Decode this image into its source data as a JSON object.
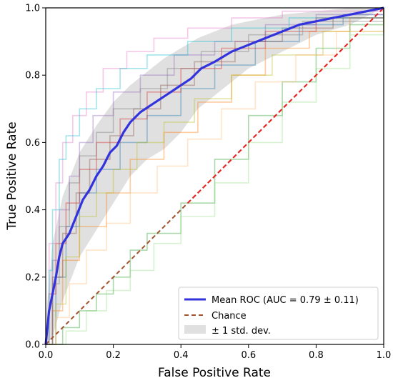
{
  "chart_data": {
    "type": "line",
    "xlabel": "False Positive Rate",
    "ylabel": "True Positive Rate",
    "xlim": [
      0.0,
      1.0
    ],
    "ylim": [
      0.0,
      1.0
    ],
    "grid": false,
    "legend_position": "bottom-right",
    "x_ticks": [
      "0.0",
      "0.2",
      "0.4",
      "0.6",
      "0.8",
      "1.0"
    ],
    "y_ticks": [
      "0.0",
      "0.2",
      "0.4",
      "0.6",
      "0.8",
      "1.0"
    ],
    "mean_roc": {
      "name": "Mean ROC (AUC = 0.79 ± 0.11)",
      "color": "#3333dd",
      "points": [
        [
          0.0,
          0.0
        ],
        [
          0.01,
          0.1
        ],
        [
          0.02,
          0.15
        ],
        [
          0.03,
          0.2
        ],
        [
          0.04,
          0.26
        ],
        [
          0.05,
          0.3
        ],
        [
          0.07,
          0.33
        ],
        [
          0.09,
          0.38
        ],
        [
          0.11,
          0.43
        ],
        [
          0.13,
          0.46
        ],
        [
          0.15,
          0.5
        ],
        [
          0.17,
          0.53
        ],
        [
          0.19,
          0.57
        ],
        [
          0.21,
          0.59
        ],
        [
          0.23,
          0.63
        ],
        [
          0.25,
          0.66
        ],
        [
          0.28,
          0.69
        ],
        [
          0.31,
          0.71
        ],
        [
          0.34,
          0.73
        ],
        [
          0.37,
          0.75
        ],
        [
          0.4,
          0.77
        ],
        [
          0.43,
          0.79
        ],
        [
          0.46,
          0.82
        ],
        [
          0.5,
          0.84
        ],
        [
          0.55,
          0.87
        ],
        [
          0.6,
          0.89
        ],
        [
          0.65,
          0.91
        ],
        [
          0.7,
          0.93
        ],
        [
          0.75,
          0.95
        ],
        [
          0.8,
          0.96
        ],
        [
          0.85,
          0.97
        ],
        [
          0.9,
          0.98
        ],
        [
          0.95,
          0.99
        ],
        [
          1.0,
          1.0
        ]
      ]
    },
    "std_band": {
      "name": "± 1 std. dev.",
      "color": "#cccccc",
      "upper": [
        [
          0.0,
          0.07
        ],
        [
          0.02,
          0.3
        ],
        [
          0.05,
          0.44
        ],
        [
          0.1,
          0.57
        ],
        [
          0.15,
          0.65
        ],
        [
          0.2,
          0.72
        ],
        [
          0.25,
          0.77
        ],
        [
          0.3,
          0.81
        ],
        [
          0.35,
          0.85
        ],
        [
          0.4,
          0.88
        ],
        [
          0.45,
          0.91
        ],
        [
          0.5,
          0.93
        ],
        [
          0.55,
          0.95
        ],
        [
          0.6,
          0.96
        ],
        [
          0.7,
          0.98
        ],
        [
          0.8,
          0.99
        ],
        [
          0.9,
          1.0
        ],
        [
          1.0,
          1.0
        ]
      ],
      "lower": [
        [
          0.0,
          0.0
        ],
        [
          0.02,
          0.02
        ],
        [
          0.05,
          0.13
        ],
        [
          0.1,
          0.26
        ],
        [
          0.15,
          0.34
        ],
        [
          0.2,
          0.42
        ],
        [
          0.25,
          0.5
        ],
        [
          0.3,
          0.55
        ],
        [
          0.35,
          0.58
        ],
        [
          0.4,
          0.63
        ],
        [
          0.45,
          0.7
        ],
        [
          0.5,
          0.74
        ],
        [
          0.55,
          0.78
        ],
        [
          0.6,
          0.82
        ],
        [
          0.7,
          0.87
        ],
        [
          0.8,
          0.92
        ],
        [
          0.9,
          0.95
        ],
        [
          1.0,
          1.0
        ]
      ]
    },
    "chance": {
      "name": "Chance",
      "color": "#a0522d",
      "overlay_color": "#ee2222",
      "points": [
        [
          0.0,
          0.0
        ],
        [
          1.0,
          1.0
        ]
      ]
    },
    "folds": [
      {
        "color": "#1f77b4",
        "points": [
          [
            0.0,
            0.0
          ],
          [
            0.03,
            0.2
          ],
          [
            0.06,
            0.35
          ],
          [
            0.1,
            0.45
          ],
          [
            0.15,
            0.52
          ],
          [
            0.22,
            0.6
          ],
          [
            0.3,
            0.68
          ],
          [
            0.4,
            0.76
          ],
          [
            0.5,
            0.83
          ],
          [
            0.62,
            0.9
          ],
          [
            0.75,
            0.95
          ],
          [
            0.88,
            0.98
          ],
          [
            1.0,
            1.0
          ]
        ]
      },
      {
        "color": "#ff7f0e",
        "points": [
          [
            0.0,
            0.0
          ],
          [
            0.02,
            0.1
          ],
          [
            0.05,
            0.25
          ],
          [
            0.1,
            0.35
          ],
          [
            0.18,
            0.45
          ],
          [
            0.25,
            0.55
          ],
          [
            0.35,
            0.63
          ],
          [
            0.45,
            0.72
          ],
          [
            0.55,
            0.8
          ],
          [
            0.65,
            0.88
          ],
          [
            0.78,
            0.93
          ],
          [
            0.9,
            0.97
          ],
          [
            1.0,
            1.0
          ]
        ]
      },
      {
        "color": "#2ca02c",
        "points": [
          [
            0.0,
            0.0
          ],
          [
            0.05,
            0.05
          ],
          [
            0.1,
            0.1
          ],
          [
            0.15,
            0.15
          ],
          [
            0.2,
            0.2
          ],
          [
            0.25,
            0.28
          ],
          [
            0.3,
            0.33
          ],
          [
            0.4,
            0.42
          ],
          [
            0.5,
            0.55
          ],
          [
            0.6,
            0.68
          ],
          [
            0.7,
            0.78
          ],
          [
            0.8,
            0.88
          ],
          [
            0.9,
            0.95
          ],
          [
            1.0,
            1.0
          ]
        ]
      },
      {
        "color": "#d62728",
        "points": [
          [
            0.0,
            0.0
          ],
          [
            0.01,
            0.15
          ],
          [
            0.03,
            0.3
          ],
          [
            0.06,
            0.42
          ],
          [
            0.1,
            0.52
          ],
          [
            0.15,
            0.6
          ],
          [
            0.22,
            0.67
          ],
          [
            0.3,
            0.75
          ],
          [
            0.4,
            0.82
          ],
          [
            0.52,
            0.88
          ],
          [
            0.65,
            0.93
          ],
          [
            0.8,
            0.97
          ],
          [
            1.0,
            1.0
          ]
        ]
      },
      {
        "color": "#9467bd",
        "points": [
          [
            0.0,
            0.0
          ],
          [
            0.02,
            0.25
          ],
          [
            0.04,
            0.4
          ],
          [
            0.07,
            0.5
          ],
          [
            0.1,
            0.6
          ],
          [
            0.14,
            0.68
          ],
          [
            0.2,
            0.75
          ],
          [
            0.28,
            0.8
          ],
          [
            0.38,
            0.86
          ],
          [
            0.5,
            0.9
          ],
          [
            0.65,
            0.95
          ],
          [
            0.8,
            0.98
          ],
          [
            1.0,
            1.0
          ]
        ]
      },
      {
        "color": "#8c564b",
        "points": [
          [
            0.0,
            0.0
          ],
          [
            0.02,
            0.2
          ],
          [
            0.05,
            0.33
          ],
          [
            0.09,
            0.45
          ],
          [
            0.13,
            0.55
          ],
          [
            0.19,
            0.62
          ],
          [
            0.26,
            0.7
          ],
          [
            0.34,
            0.77
          ],
          [
            0.44,
            0.84
          ],
          [
            0.56,
            0.9
          ],
          [
            0.7,
            0.94
          ],
          [
            0.85,
            0.97
          ],
          [
            1.0,
            1.0
          ]
        ]
      },
      {
        "color": "#e377c2",
        "points": [
          [
            0.0,
            0.0
          ],
          [
            0.01,
            0.3
          ],
          [
            0.03,
            0.48
          ],
          [
            0.05,
            0.6
          ],
          [
            0.08,
            0.68
          ],
          [
            0.12,
            0.75
          ],
          [
            0.17,
            0.82
          ],
          [
            0.24,
            0.87
          ],
          [
            0.32,
            0.91
          ],
          [
            0.42,
            0.94
          ],
          [
            0.55,
            0.97
          ],
          [
            0.7,
            0.99
          ],
          [
            1.0,
            1.0
          ]
        ]
      },
      {
        "color": "#7f7f7f",
        "points": [
          [
            0.0,
            0.0
          ],
          [
            0.02,
            0.18
          ],
          [
            0.04,
            0.35
          ],
          [
            0.07,
            0.48
          ],
          [
            0.1,
            0.56
          ],
          [
            0.15,
            0.63
          ],
          [
            0.2,
            0.7
          ],
          [
            0.28,
            0.76
          ],
          [
            0.36,
            0.82
          ],
          [
            0.46,
            0.87
          ],
          [
            0.6,
            0.92
          ],
          [
            0.76,
            0.96
          ],
          [
            1.0,
            1.0
          ]
        ]
      },
      {
        "color": "#bcbd22",
        "points": [
          [
            0.0,
            0.0
          ],
          [
            0.03,
            0.12
          ],
          [
            0.06,
            0.26
          ],
          [
            0.1,
            0.38
          ],
          [
            0.15,
            0.45
          ],
          [
            0.2,
            0.52
          ],
          [
            0.27,
            0.6
          ],
          [
            0.35,
            0.66
          ],
          [
            0.44,
            0.73
          ],
          [
            0.55,
            0.8
          ],
          [
            0.67,
            0.86
          ],
          [
            0.82,
            0.93
          ],
          [
            1.0,
            1.0
          ]
        ]
      },
      {
        "color": "#17becf",
        "points": [
          [
            0.0,
            0.0
          ],
          [
            0.01,
            0.22
          ],
          [
            0.02,
            0.4
          ],
          [
            0.04,
            0.55
          ],
          [
            0.06,
            0.62
          ],
          [
            0.1,
            0.7
          ],
          [
            0.15,
            0.76
          ],
          [
            0.22,
            0.82
          ],
          [
            0.3,
            0.86
          ],
          [
            0.42,
            0.9
          ],
          [
            0.55,
            0.94
          ],
          [
            0.72,
            0.97
          ],
          [
            1.0,
            1.0
          ]
        ]
      },
      {
        "color": "#98df8a",
        "points": [
          [
            0.0,
            0.0
          ],
          [
            0.06,
            0.04
          ],
          [
            0.12,
            0.1
          ],
          [
            0.18,
            0.16
          ],
          [
            0.25,
            0.22
          ],
          [
            0.32,
            0.3
          ],
          [
            0.4,
            0.38
          ],
          [
            0.5,
            0.48
          ],
          [
            0.6,
            0.6
          ],
          [
            0.7,
            0.72
          ],
          [
            0.8,
            0.82
          ],
          [
            0.9,
            0.92
          ],
          [
            1.0,
            1.0
          ]
        ]
      },
      {
        "color": "#ffbb78",
        "points": [
          [
            0.0,
            0.0
          ],
          [
            0.03,
            0.08
          ],
          [
            0.07,
            0.18
          ],
          [
            0.12,
            0.28
          ],
          [
            0.18,
            0.36
          ],
          [
            0.25,
            0.45
          ],
          [
            0.33,
            0.53
          ],
          [
            0.42,
            0.61
          ],
          [
            0.52,
            0.7
          ],
          [
            0.62,
            0.78
          ],
          [
            0.74,
            0.86
          ],
          [
            0.86,
            0.93
          ],
          [
            1.0,
            1.0
          ]
        ]
      }
    ]
  }
}
